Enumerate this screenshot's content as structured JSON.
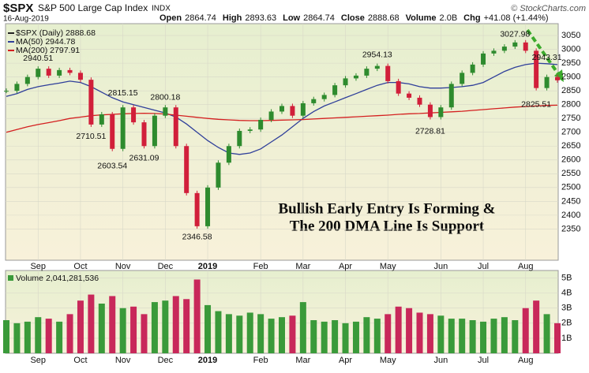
{
  "header": {
    "symbol": "$SPX",
    "name": "S&P 500 Large Cap Index",
    "exchange": "INDX",
    "date": "16-Aug-2019",
    "source": "© StockCharts.com",
    "quote": [
      {
        "label": "Open",
        "value": "2864.74"
      },
      {
        "label": "High",
        "value": "2893.63"
      },
      {
        "label": "Low",
        "value": "2864.74"
      },
      {
        "label": "Close",
        "value": "2888.68"
      },
      {
        "label": "Volume",
        "value": "2.0B"
      },
      {
        "label": "Chg",
        "value": "+41.08 (+1.44%)"
      }
    ]
  },
  "chart_data": [
    {
      "type": "candle",
      "annotation": [
        "Bullish Early Entry Is Forming &",
        "The 200 DMA Line Is Support"
      ],
      "categories": [
        null,
        null,
        null,
        "Sep",
        null,
        null,
        null,
        "Oct",
        null,
        null,
        null,
        "Nov",
        null,
        null,
        null,
        "Dec",
        null,
        null,
        null,
        "2019",
        null,
        null,
        null,
        null,
        "Feb",
        null,
        null,
        null,
        "Mar",
        null,
        null,
        null,
        "Apr",
        null,
        null,
        null,
        "May",
        null,
        null,
        null,
        null,
        "Jun",
        null,
        null,
        null,
        "Jul",
        null,
        null,
        null,
        "Aug",
        null,
        null,
        null
      ],
      "series": [
        {
          "name": "$SPX (Daily) 2888.68",
          "up_color": "#2e8b2e",
          "down_color": "#d11f3a",
          "legend_color": "#222222",
          "values": [
            2850,
            2875,
            2900,
            2930,
            2905,
            2925,
            2915,
            2890,
            2728,
            2765,
            2640,
            2790,
            2736,
            2650,
            2760,
            2790,
            2650,
            2480,
            2360,
            2500,
            2590,
            2650,
            2705,
            2710,
            2745,
            2775,
            2795,
            2760,
            2805,
            2820,
            2835,
            2870,
            2895,
            2905,
            2930,
            2940,
            2885,
            2840,
            2825,
            2800,
            2755,
            2790,
            2875,
            2915,
            2945,
            2985,
            2995,
            3010,
            3025,
            2995,
            2860,
            2900,
            2888
          ]
        },
        {
          "name": "MA(50) 2944.78",
          "color": "#2f3f9a",
          "values": [
            2830,
            2840,
            2855,
            2865,
            2872,
            2878,
            2885,
            2880,
            2865,
            2845,
            2825,
            2810,
            2800,
            2790,
            2780,
            2770,
            2755,
            2730,
            2700,
            2670,
            2645,
            2625,
            2620,
            2625,
            2640,
            2665,
            2690,
            2720,
            2750,
            2775,
            2795,
            2810,
            2825,
            2840,
            2855,
            2870,
            2880,
            2880,
            2875,
            2865,
            2860,
            2860,
            2862,
            2865,
            2870,
            2880,
            2900,
            2920,
            2935,
            2945,
            2950,
            2948,
            2945
          ]
        },
        {
          "name": "MA(200) 2797.91",
          "color": "#d42020",
          "values": [
            2700,
            2710,
            2720,
            2728,
            2735,
            2742,
            2750,
            2755,
            2760,
            2763,
            2765,
            2767,
            2768,
            2769,
            2768,
            2766,
            2762,
            2758,
            2754,
            2750,
            2747,
            2745,
            2743,
            2742,
            2742,
            2743,
            2744,
            2745,
            2746,
            2748,
            2750,
            2752,
            2754,
            2756,
            2758,
            2760,
            2762,
            2765,
            2767,
            2768,
            2770,
            2772,
            2774,
            2776,
            2779,
            2782,
            2785,
            2788,
            2791,
            2793,
            2795,
            2797,
            2798
          ]
        }
      ],
      "price_labels": [
        {
          "at": 3,
          "value": 2940.51
        },
        {
          "at": 8,
          "value": 2710.51
        },
        {
          "at": 11,
          "value": 2815.15
        },
        {
          "at": 10,
          "value": 2603.54
        },
        {
          "at": 15,
          "value": 2800.18
        },
        {
          "at": 13,
          "value": 2631.09
        },
        {
          "at": 18,
          "value": 2346.58
        },
        {
          "at": 35,
          "value": 2954.13
        },
        {
          "at": 40,
          "value": 2728.81
        },
        {
          "at": 48,
          "value": 3027.98
        },
        {
          "at": 51,
          "value": 2943.31
        },
        {
          "at": 50,
          "value": 2825.51
        }
      ],
      "ylim": [
        2237,
        3093
      ],
      "yticks": [
        2350,
        2400,
        2450,
        2500,
        2550,
        2600,
        2650,
        2700,
        2750,
        2800,
        2850,
        2900,
        2950,
        3000,
        3050
      ],
      "grid": true
    },
    {
      "type": "volume",
      "name": "Volume 2,041,281,536",
      "up_color": "#3a9a3a",
      "down_color": "#c8285a",
      "values": [
        2.2,
        2.0,
        2.1,
        2.4,
        2.3,
        2.1,
        2.6,
        3.5,
        3.9,
        3.3,
        3.8,
        3.0,
        3.1,
        2.6,
        3.4,
        3.5,
        3.8,
        3.6,
        4.9,
        3.2,
        2.8,
        2.6,
        2.5,
        2.7,
        2.6,
        2.3,
        2.4,
        2.5,
        3.4,
        2.2,
        2.1,
        2.2,
        2.0,
        2.1,
        2.4,
        2.3,
        2.6,
        3.1,
        3.0,
        2.7,
        2.6,
        2.5,
        2.3,
        2.3,
        2.2,
        2.1,
        2.3,
        2.4,
        2.2,
        3.0,
        3.5,
        2.6,
        2.0
      ],
      "ylim": [
        0,
        5.5
      ],
      "yticks": [
        {
          "value": 1,
          "label": "1B"
        },
        {
          "value": 2,
          "label": "2B"
        },
        {
          "value": 3,
          "label": "3B"
        },
        {
          "value": 4,
          "label": "4B"
        },
        {
          "value": 5,
          "label": "5B"
        }
      ],
      "grid": true
    }
  ]
}
